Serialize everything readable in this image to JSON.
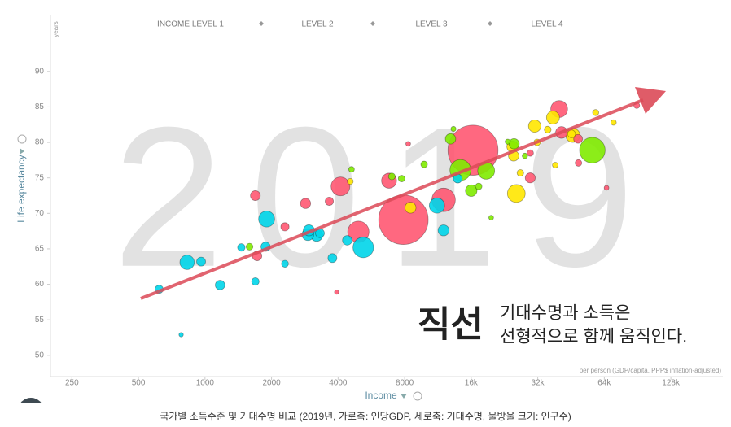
{
  "chart_data": {
    "type": "bubble",
    "background_year": "2019",
    "header_labels": [
      "INCOME LEVEL 1",
      "LEVEL 2",
      "LEVEL 3",
      "LEVEL 4"
    ],
    "y_unit": "years",
    "ylabel": "Life expectancy",
    "xlabel": "Income",
    "x_note": "per person (GDP/capita, PPP$ inflation-adjusted)",
    "annotation_bold": "직선",
    "annotation_lines": [
      "기대수명과 소득은",
      "선형적으로 함께 움직인다."
    ],
    "caption": "국가별 소득수준 및 기대수명 비교 (2019년, 가로축: 인당GDP, 세로축: 기대수명, 물방울 크기: 인구수)",
    "xscale": "log",
    "xlim": [
      200,
      220000
    ],
    "xticks": [
      250,
      500,
      1000,
      2000,
      4000,
      8000,
      {
        "value": 16000,
        "label": "16k"
      },
      {
        "value": 32000,
        "label": "32k"
      },
      {
        "value": 64000,
        "label": "64k"
      },
      {
        "value": 128000,
        "label": "128k"
      }
    ],
    "ylim": [
      47,
      98
    ],
    "yticks": [
      50,
      55,
      60,
      65,
      70,
      75,
      80,
      85,
      90
    ],
    "series": [
      {
        "color": "#00d5e9",
        "x": [
          830,
          5200,
          1900,
          11200,
          2920,
          1170,
          620,
          960,
          1880,
          2950,
          4400,
          12000,
          13900,
          3770,
          780,
          1690,
          3310,
          1460,
          3200,
          2300
        ],
        "values": [
          63.1,
          65.2,
          69.2,
          71.1,
          67.0,
          59.9,
          59.3,
          63.2,
          65.3,
          67.6,
          66.2,
          67.6,
          74.9,
          63.7,
          52.9,
          60.4,
          67.2,
          65.2,
          66.9,
          62.9
        ],
        "sizes": [
          87,
          201,
          112,
          100,
          53,
          30,
          20,
          25,
          28,
          45,
          30,
          44,
          25,
          25,
          2,
          15,
          25,
          15,
          55,
          12
        ]
      },
      {
        "color": "#7feb00",
        "x": [
          56500,
          14300,
          18700,
          16000,
          12900,
          25000,
          7000,
          1590,
          9800,
          7750,
          28000,
          17300,
          23400,
          13300,
          4600,
          19700
        ],
        "values": [
          78.9,
          76.1,
          76.0,
          73.2,
          80.5,
          79.8,
          75.2,
          65.3,
          76.9,
          74.9,
          78.1,
          73.8,
          80.1,
          81.9,
          76.2,
          69.4
        ],
        "sizes": [
          329,
          211,
          128,
          50,
          38,
          38,
          11,
          11,
          10,
          10,
          5,
          10,
          4,
          4,
          6,
          3
        ]
      },
      {
        "color": "#ffe700",
        "x": [
          25600,
          46100,
          37500,
          31000,
          24600,
          24900,
          45500,
          58500,
          31800,
          8500,
          4540,
          26700,
          35500,
          38400,
          70500
        ],
        "values": [
          72.8,
          81.0,
          83.5,
          82.3,
          79.4,
          78.1,
          81.2,
          84.2,
          80.0,
          70.8,
          74.5,
          75.7,
          81.8,
          76.8,
          82.8
        ],
        "sizes": [
          144,
          83,
          67,
          60,
          47,
          38,
          17,
          8,
          10,
          44,
          7,
          10,
          11,
          6,
          5
        ]
      },
      {
        "color": "#ff5872",
        "x": [
          7900,
          16300,
          12000,
          4940,
          4100,
          6800,
          40000,
          1690,
          1720,
          2300,
          29600,
          41000,
          48700,
          2850,
          3650,
          29600,
          89700,
          65500,
          48900,
          3940,
          8300
        ],
        "values": [
          69.1,
          78.9,
          71.9,
          67.4,
          73.8,
          74.6,
          84.7,
          72.5,
          64.0,
          68.1,
          75.0,
          81.4,
          80.5,
          71.4,
          71.7,
          78.5,
          85.2,
          73.6,
          77.1,
          58.9,
          79.8
        ],
        "sizes": [
          1366,
          1400,
          271,
          217,
          163,
          96,
          126,
          33,
          30,
          20,
          34,
          52,
          24,
          36,
          20,
          9,
          7,
          3,
          10,
          2,
          3
        ]
      }
    ]
  }
}
